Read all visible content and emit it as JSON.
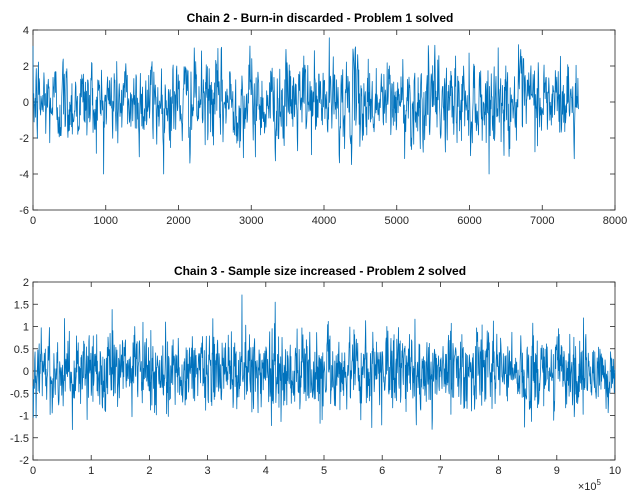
{
  "chart_data": [
    {
      "type": "line",
      "title": "Chain 2 - Burn-in discarded - Problem 1 solved",
      "xlim": [
        0,
        8000
      ],
      "ylim": [
        -6,
        4
      ],
      "xticks": [
        "0",
        "1000",
        "2000",
        "3000",
        "4000",
        "5000",
        "6000",
        "7000",
        "8000"
      ],
      "yticks": [
        "4",
        "2",
        "0",
        "-2",
        "-4",
        "-6"
      ],
      "xlabel": "",
      "ylabel": "",
      "series_color": "#0072BD",
      "series": [
        {
          "x_start": 0,
          "x_end": 7500,
          "n_points": 1500,
          "approx_mean": 0,
          "approx_std": 1.2,
          "observed_min": -4.0,
          "observed_max": 3.8
        }
      ]
    },
    {
      "type": "line",
      "title": "Chain 3 - Sample size increased - Problem 2 solved",
      "xlim": [
        0,
        10
      ],
      "ylim": [
        -2,
        2
      ],
      "xticks": [
        "0",
        "1",
        "2",
        "3",
        "4",
        "5",
        "6",
        "7",
        "8",
        "9",
        "10"
      ],
      "yticks": [
        "2",
        "1.5",
        "1",
        "0.5",
        "0",
        "-0.5",
        "-1",
        "-1.5",
        "-2"
      ],
      "x_multiplier": "×10",
      "x_multiplier_exp": "5",
      "xlabel": "",
      "ylabel": "",
      "series_color": "#0072BD",
      "series": [
        {
          "x_start": 0,
          "x_end": 10,
          "n_points": 1700,
          "approx_mean": 0,
          "approx_std": 0.45,
          "observed_min": -1.6,
          "observed_max": 1.8
        }
      ]
    }
  ]
}
